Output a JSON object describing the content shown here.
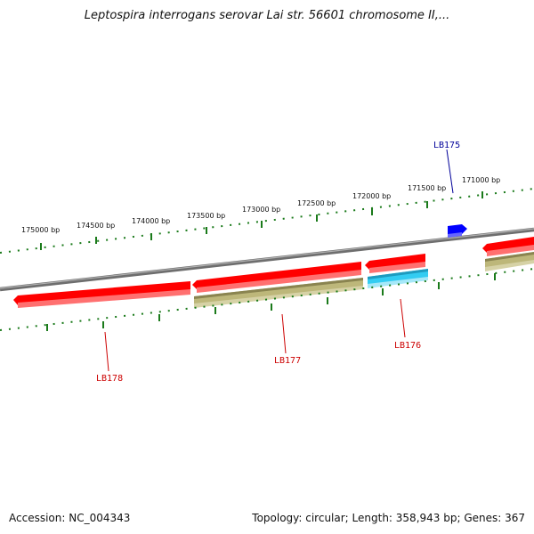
{
  "title": "Leptospira interrogans serovar Lai str. 56601 chromosome II,...",
  "footer": {
    "accession": "Accession: NC_004343",
    "stats": "Topology: circular; Length: 358,943 bp; Genes: 367"
  },
  "colors": {
    "backbone": "#808080",
    "tick": "#1a7a1a",
    "gene_red": "#ff0000",
    "gene_olive": "#bdb77a",
    "gene_cyan": "#33ccf2",
    "gene_blue": "#0000ff",
    "label_red": "#cc0000",
    "label_blue": "#000099"
  },
  "scale": {
    "tick_labels": [
      "175000 bp",
      "174500 bp",
      "174000 bp",
      "173500 bp",
      "173000 bp",
      "172500 bp",
      "172000 bp",
      "171500 bp",
      "171000 bp"
    ]
  },
  "genes": [
    {
      "name": "LB178",
      "label": "LB178",
      "color": "red",
      "strand": "forward"
    },
    {
      "name": "LB177",
      "label": "LB177",
      "color": "red",
      "strand": "forward"
    },
    {
      "name": "LB177-cds",
      "label": "",
      "color": "olive",
      "strand": "forward"
    },
    {
      "name": "LB176",
      "label": "LB176",
      "color": "red",
      "strand": "forward"
    },
    {
      "name": "LB176-cds",
      "label": "",
      "color": "cyan",
      "strand": "forward"
    },
    {
      "name": "LB175",
      "label": "LB175",
      "color": "blue",
      "strand": "forward"
    },
    {
      "name": "next-gene",
      "label": "",
      "color": "red",
      "strand": "forward"
    },
    {
      "name": "next-gene-cds",
      "label": "",
      "color": "olive",
      "strand": "forward"
    }
  ]
}
